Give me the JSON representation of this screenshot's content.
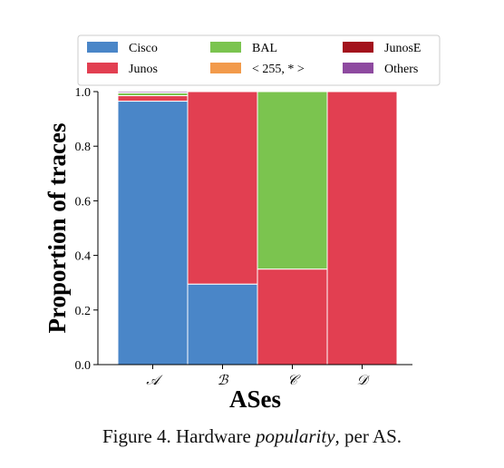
{
  "chart_data": {
    "type": "bar",
    "stacked": true,
    "categories": [
      "𝒜",
      "ℬ",
      "𝒞",
      "𝒟"
    ],
    "xlabel": "ASes",
    "ylabel": "Proportion of traces",
    "ylim": [
      0,
      1.0
    ],
    "yticks": [
      "0.0",
      "0.2",
      "0.4",
      "0.6",
      "0.8",
      "1.0"
    ],
    "legend_position": "top",
    "series": [
      {
        "name": "Cisco",
        "color": "#4a86c8",
        "values": [
          0.965,
          0.295,
          0.0,
          0.0
        ]
      },
      {
        "name": "Junos",
        "color": "#e23f51",
        "values": [
          0.02,
          0.705,
          0.35,
          1.0
        ]
      },
      {
        "name": "BAL",
        "color": "#7bc44f",
        "values": [
          0.01,
          0.0,
          0.65,
          0.0
        ]
      },
      {
        "name": "< 255, * >",
        "color": "#f29a4b",
        "values": [
          0.0,
          0.0,
          0.0,
          0.0
        ]
      },
      {
        "name": "JunosE",
        "color": "#a3121c",
        "values": [
          0.0,
          0.0,
          0.0,
          0.0
        ]
      },
      {
        "name": "Others",
        "color": "#8e4aa0",
        "values": [
          0.005,
          0.0,
          0.0,
          0.0
        ]
      }
    ]
  },
  "caption": {
    "prefix": "Figure 4. Hardware ",
    "emphasis": "popularity",
    "suffix": ", per AS."
  }
}
